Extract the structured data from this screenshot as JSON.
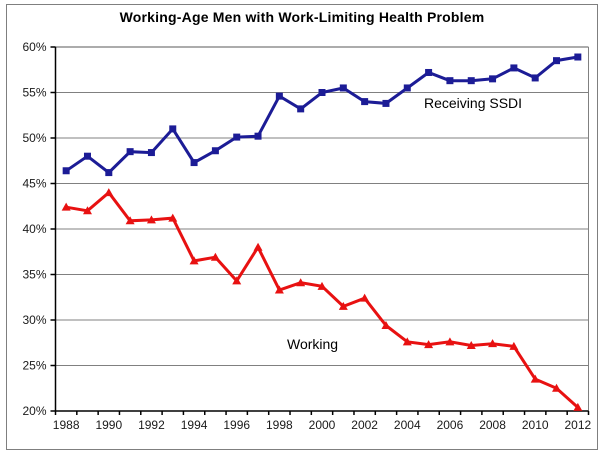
{
  "chart_data": {
    "type": "line",
    "title": "Working-Age Men with Work-Limiting Health Problem",
    "x": [
      1988,
      1989,
      1990,
      1991,
      1992,
      1993,
      1994,
      1995,
      1996,
      1997,
      1998,
      1999,
      2000,
      2001,
      2002,
      2003,
      2004,
      2005,
      2006,
      2007,
      2008,
      2009,
      2010,
      2011,
      2012
    ],
    "series": [
      {
        "name": "Receiving SSDI",
        "color": "#1c1c96",
        "marker": "square",
        "values": [
          46.4,
          48.0,
          46.2,
          48.5,
          48.4,
          51.0,
          47.3,
          48.6,
          50.1,
          50.2,
          54.6,
          53.2,
          55.0,
          55.5,
          54.0,
          53.8,
          55.5,
          57.2,
          56.3,
          56.3,
          56.5,
          57.7,
          56.6,
          58.5,
          58.9
        ]
      },
      {
        "name": "Working",
        "color": "#e81111",
        "marker": "triangle",
        "values": [
          42.4,
          42.0,
          44.0,
          40.9,
          41.0,
          41.2,
          36.5,
          36.9,
          34.3,
          38.0,
          33.3,
          34.1,
          33.7,
          31.5,
          32.4,
          29.4,
          27.6,
          27.3,
          27.6,
          27.2,
          27.4,
          27.1,
          23.5,
          22.5,
          20.4
        ]
      }
    ],
    "annotations": [
      {
        "text": "Receiving SSDI"
      },
      {
        "text": "Working"
      }
    ],
    "y_axis": {
      "min": 20,
      "max": 60,
      "step": 5,
      "tick_labels": [
        "60%",
        "55%",
        "50%",
        "45%",
        "40%",
        "35%",
        "30%",
        "25%",
        "20%"
      ]
    },
    "x_axis": {
      "tick_labels": [
        "1988",
        "1990",
        "1992",
        "1994",
        "1996",
        "1998",
        "2000",
        "2002",
        "2004",
        "2006",
        "2008",
        "2010",
        "2012"
      ]
    },
    "grid": true,
    "legend_position": "none",
    "plot_background": "#ffffff",
    "gridline_color": "#808080",
    "axis_color": "#000000"
  }
}
